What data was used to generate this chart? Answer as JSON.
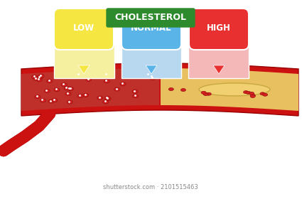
{
  "title": "CHOLESTEROL",
  "title_bg": "#2d8a2d",
  "title_color": "#ffffff",
  "labels": [
    "LOW",
    "NORMAL",
    "HIGH"
  ],
  "label_colors": [
    "#f5e642",
    "#5ab4e8",
    "#e83030"
  ],
  "panel_colors": [
    "#f5f0a0",
    "#b8d8f0",
    "#f5b8b8"
  ],
  "background_color": "#ffffff",
  "watermark": "shutterstock.com · 2101515463"
}
